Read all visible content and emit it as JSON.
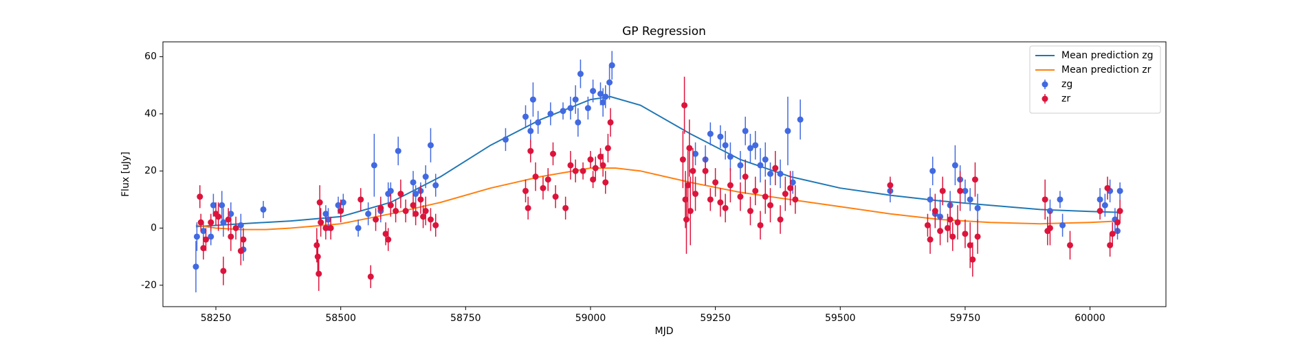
{
  "chart_data": {
    "type": "scatter",
    "title": "GP Regression",
    "x_label": "MJD",
    "y_label": "Flux [uJy]",
    "xlim": [
      58144,
      60152
    ],
    "ylim": [
      -27.5,
      65.2
    ],
    "xticks": [
      58250,
      58500,
      58750,
      59000,
      59250,
      59500,
      59750,
      60000
    ],
    "yticks": [
      -20,
      0,
      20,
      40,
      60
    ],
    "legend": "upper right",
    "series": [
      {
        "name": "Mean prediction zg",
        "kind": "line",
        "color": "#1f77b4",
        "x": [
          58210,
          58300,
          58400,
          58500,
          58600,
          58700,
          58800,
          58900,
          59000,
          59040,
          59100,
          59200,
          59300,
          59400,
          59500,
          59600,
          59700,
          59800,
          59900,
          60000,
          60060
        ],
        "values": [
          0.5,
          1.5,
          2.5,
          4,
          9,
          18,
          29,
          38,
          45,
          46,
          43,
          33,
          24,
          18,
          14,
          11.5,
          9.5,
          8,
          6.5,
          5.8,
          5.5
        ]
      },
      {
        "name": "Mean prediction zr",
        "kind": "line",
        "color": "#ff7f0e",
        "x": [
          58210,
          58250,
          58300,
          58350,
          58400,
          58500,
          58600,
          58700,
          58800,
          58900,
          59000,
          59050,
          59100,
          59200,
          59300,
          59400,
          59500,
          59600,
          59700,
          59800,
          59900,
          60000,
          60060
        ],
        "values": [
          1,
          0,
          -0.5,
          -0.5,
          0,
          1.5,
          5,
          9,
          14,
          18,
          21,
          21,
          20,
          16,
          12.5,
          10,
          7.5,
          5,
          3,
          2,
          1.5,
          2,
          2.5
        ]
      },
      {
        "name": "zg",
        "kind": "errorbar",
        "color": "#4169e1",
        "x": [
          58210,
          58212,
          58225,
          58240,
          58245,
          58262,
          58265,
          58280,
          58300,
          58305,
          58345,
          58470,
          58475,
          58495,
          58505,
          58535,
          58555,
          58567,
          58580,
          58595,
          58600,
          58615,
          58645,
          58650,
          58660,
          58670,
          58680,
          58690,
          58830,
          58870,
          58880,
          58885,
          58895,
          58920,
          58945,
          58960,
          58970,
          58975,
          58980,
          58995,
          59005,
          59020,
          59025,
          59030,
          59038,
          59043,
          59210,
          59230,
          59240,
          59260,
          59270,
          59280,
          59300,
          59310,
          59320,
          59330,
          59340,
          59350,
          59360,
          59380,
          59395,
          59405,
          59420,
          59600,
          59680,
          59685,
          59690,
          59700,
          59720,
          59730,
          59740,
          59750,
          59760,
          59775,
          59920,
          59940,
          59945,
          60020,
          60030,
          60040,
          60050,
          60055,
          60060
        ],
        "values": [
          -13.5,
          -3,
          -1,
          -3,
          8,
          8,
          2,
          5,
          1,
          -7.5,
          6.5,
          5,
          3,
          8,
          9,
          0,
          5,
          22,
          6,
          12,
          13,
          27,
          16,
          12,
          13,
          18,
          29,
          15,
          31,
          39,
          34,
          45,
          37,
          40,
          41,
          42,
          45,
          37,
          54,
          42,
          48,
          47,
          44,
          46,
          51,
          57,
          26,
          24,
          33,
          32,
          29,
          25,
          22,
          34,
          28,
          29,
          22,
          24,
          19,
          19,
          34,
          16,
          38,
          13,
          10,
          20,
          5,
          4,
          8,
          22,
          17,
          13,
          10,
          7,
          6,
          10,
          1,
          10,
          8,
          13,
          3,
          -1,
          13
        ],
        "errors": [
          9,
          5,
          3,
          3,
          4,
          5,
          5,
          4,
          4,
          4,
          3,
          3,
          4,
          3,
          3,
          3,
          4,
          11,
          4,
          4,
          3,
          5,
          4,
          3,
          3,
          4,
          6,
          4,
          4,
          4,
          4,
          6,
          4,
          4,
          3,
          4,
          5,
          5,
          5,
          4,
          4,
          4,
          5,
          4,
          6,
          5,
          4,
          5,
          4,
          4,
          5,
          5,
          5,
          5,
          5,
          5,
          6,
          6,
          4,
          5,
          12,
          4,
          7,
          4,
          4,
          5,
          5,
          6,
          5,
          7,
          5,
          4,
          4,
          5,
          4,
          3,
          4,
          4,
          4,
          4,
          4,
          3,
          3
        ]
      },
      {
        "name": "zr",
        "kind": "errorbar",
        "color": "#dc143c",
        "x": [
          58218,
          58220,
          58225,
          58230,
          58240,
          58250,
          58255,
          58265,
          58275,
          58280,
          58290,
          58300,
          58305,
          58452,
          58454,
          58456,
          58458,
          58460,
          58470,
          58480,
          58500,
          58540,
          58560,
          58570,
          58580,
          58590,
          58595,
          58600,
          58610,
          58620,
          58630,
          58645,
          58650,
          58660,
          58665,
          58670,
          58680,
          58690,
          58870,
          58875,
          58880,
          58890,
          58905,
          58915,
          58925,
          58930,
          58950,
          58960,
          58970,
          58985,
          59000,
          59005,
          59010,
          59020,
          59025,
          59030,
          59035,
          59040,
          59185,
          59188,
          59190,
          59192,
          59195,
          59198,
          59200,
          59205,
          59210,
          59230,
          59240,
          59250,
          59260,
          59270,
          59280,
          59300,
          59310,
          59320,
          59330,
          59340,
          59350,
          59360,
          59370,
          59380,
          59390,
          59400,
          59410,
          59600,
          59675,
          59680,
          59690,
          59700,
          59705,
          59715,
          59720,
          59725,
          59735,
          59740,
          59750,
          59760,
          59765,
          59770,
          59775,
          59910,
          59915,
          59920,
          59960,
          60020,
          60035,
          60040,
          60045,
          60055,
          60060
        ],
        "values": [
          11,
          2,
          -7,
          -4,
          2,
          5,
          4,
          -15,
          3,
          -3,
          0,
          -8,
          -4,
          -6,
          -10,
          -16,
          9,
          2,
          0,
          0,
          6,
          10,
          -17,
          3,
          7,
          -2,
          -4,
          8,
          6,
          12,
          6,
          8,
          5,
          10,
          4,
          6,
          3,
          1,
          13,
          7,
          27,
          18,
          14,
          17,
          26,
          11,
          7,
          22,
          20,
          20,
          24,
          17,
          21,
          25,
          22,
          16,
          28,
          37,
          24,
          43,
          10,
          3,
          15,
          28,
          6,
          20,
          12,
          20,
          10,
          16,
          9,
          7,
          15,
          11,
          18,
          6,
          13,
          1,
          11,
          8,
          21,
          3,
          12,
          14,
          10,
          15,
          1,
          -4,
          6,
          -1,
          13,
          0,
          3,
          -3,
          2,
          13,
          -2,
          -6,
          -11,
          17,
          -3,
          10,
          -1,
          0,
          -6,
          6,
          14,
          -6,
          -2,
          2,
          6
        ],
        "errors": [
          4,
          3,
          4,
          4,
          3,
          4,
          5,
          5,
          4,
          5,
          4,
          5,
          4,
          6,
          6,
          6,
          6,
          5,
          4,
          4,
          4,
          4,
          4,
          4,
          4,
          4,
          4,
          4,
          4,
          5,
          4,
          4,
          4,
          5,
          4,
          5,
          4,
          4,
          4,
          4,
          4,
          5,
          4,
          4,
          4,
          4,
          4,
          5,
          4,
          3,
          3,
          3,
          4,
          3,
          4,
          4,
          5,
          5,
          10,
          10,
          10,
          12,
          12,
          10,
          12,
          8,
          6,
          5,
          4,
          5,
          5,
          5,
          6,
          5,
          6,
          5,
          5,
          5,
          6,
          6,
          6,
          5,
          6,
          6,
          5,
          3,
          4,
          5,
          6,
          5,
          5,
          5,
          6,
          5,
          6,
          7,
          5,
          8,
          6,
          6,
          6,
          7,
          5,
          6,
          5,
          3,
          4,
          4,
          4,
          4,
          4
        ]
      }
    ]
  }
}
